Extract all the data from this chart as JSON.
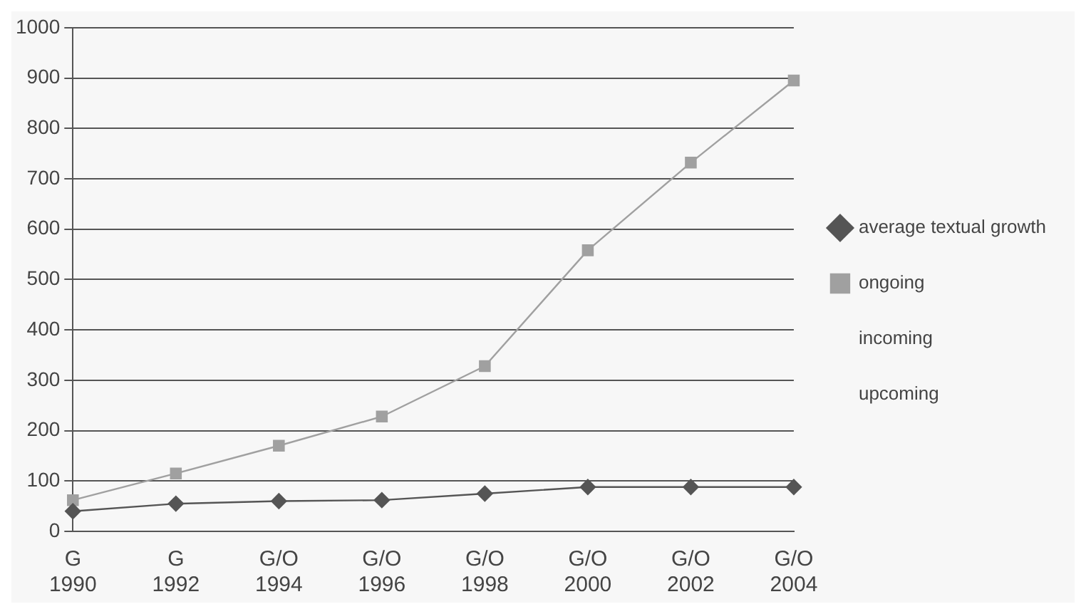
{
  "chart_data": {
    "type": "line",
    "categories": [
      "G\n1990",
      "G\n1992",
      "G/O\n1994",
      "G/O\n1996",
      "G/O\n1998",
      "G/O\n2000",
      "G/O\n2002",
      "G/O\n2004"
    ],
    "series": [
      {
        "name": "average textual growth",
        "color": "#555555",
        "marker": "diamond",
        "values": [
          40,
          55,
          60,
          62,
          75,
          88,
          88,
          88
        ]
      },
      {
        "name": "ongoing",
        "color": "#a0a0a0",
        "marker": "square",
        "values": [
          62,
          115,
          170,
          228,
          328,
          558,
          732,
          895
        ]
      },
      {
        "name": "incoming",
        "marker": "none",
        "values": [
          null,
          null,
          null,
          null,
          null,
          null,
          null,
          null
        ]
      },
      {
        "name": "upcoming",
        "marker": "none",
        "values": [
          null,
          null,
          null,
          null,
          null,
          null,
          null,
          null
        ]
      }
    ],
    "ylim": [
      0,
      1000
    ],
    "yticks": [
      0,
      100,
      200,
      300,
      400,
      500,
      600,
      700,
      800,
      900,
      1000
    ],
    "grid": "y",
    "legend": "right"
  }
}
